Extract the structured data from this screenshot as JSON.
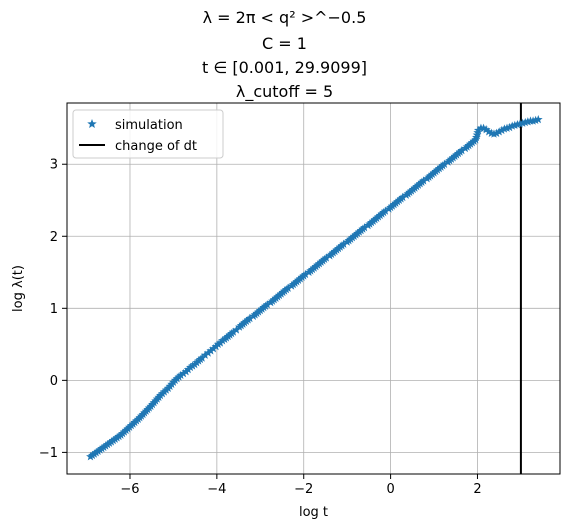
{
  "title_lines": [
    "λ = 2π < q² >^−0.5",
    "C = 1",
    "t ∈ [0.001, 29.9099]",
    "λ_cutoff = 5"
  ],
  "colors": {
    "series": "#1f77b4",
    "vline": "#000000",
    "grid": "#b0b0b0"
  },
  "chart_data": {
    "type": "scatter",
    "xlabel": "log t",
    "ylabel": "log λ(t)",
    "xlim": [
      -7.45,
      3.9
    ],
    "ylim": [
      -1.3,
      3.85
    ],
    "x_ticks": [
      -6,
      -4,
      -2,
      0,
      2
    ],
    "x_tick_labels": [
      "−6",
      "−4",
      "−2",
      "0",
      "2"
    ],
    "y_ticks": [
      -1,
      0,
      1,
      2,
      3
    ],
    "y_tick_labels": [
      "−1",
      "0",
      "1",
      "2",
      "3"
    ],
    "grid": true,
    "legend_position": "upper-left",
    "series": [
      {
        "name": "simulation",
        "marker": "star",
        "x": [
          -6.91,
          -6.21,
          -5.81,
          -5.52,
          -5.3,
          -5.12,
          -4.96,
          -4.83,
          -4.71,
          -4.61,
          -4.51,
          -4.42,
          -4.34,
          -4.27,
          -4.2,
          -4.14,
          -4.08,
          -4.02,
          -3.97,
          -3.92,
          -3.87,
          -3.82,
          -3.78,
          -3.74,
          -3.7,
          -3.66,
          -3.62,
          -3.55,
          -3.48,
          -3.4,
          -3.32,
          -3.24,
          -3.16,
          -3.08,
          -3.0,
          -2.92,
          -2.84,
          -2.76,
          -2.68,
          -2.6,
          -2.52,
          -2.44,
          -2.36,
          -2.28,
          -2.2,
          -2.12,
          -2.04,
          -1.96,
          -1.88,
          -1.8,
          -1.72,
          -1.64,
          -1.56,
          -1.48,
          -1.4,
          -1.32,
          -1.24,
          -1.16,
          -1.08,
          -1.0,
          -0.92,
          -0.84,
          -0.76,
          -0.68,
          -0.6,
          -0.52,
          -0.44,
          -0.36,
          -0.28,
          -0.2,
          -0.12,
          -0.04,
          0.04,
          0.12,
          0.2,
          0.28,
          0.36,
          0.44,
          0.52,
          0.6,
          0.68,
          0.76,
          0.84,
          0.92,
          1.0,
          1.08,
          1.16,
          1.24,
          1.32,
          1.4,
          1.48,
          1.56,
          1.64,
          1.72,
          1.8,
          1.88,
          1.96,
          2.02,
          2.08,
          2.14,
          2.2,
          2.26,
          2.32,
          2.38,
          2.44,
          2.5,
          2.56,
          2.62,
          2.68,
          2.74,
          2.8,
          2.86,
          2.92,
          2.98,
          3.04,
          3.1,
          3.16,
          3.22,
          3.28,
          3.34,
          3.4
        ],
        "y": [
          -1.06,
          -0.76,
          -0.54,
          -0.36,
          -0.21,
          -0.11,
          0.0,
          0.07,
          0.12,
          0.18,
          0.22,
          0.27,
          0.31,
          0.35,
          0.38,
          0.41,
          0.44,
          0.47,
          0.5,
          0.52,
          0.55,
          0.57,
          0.59,
          0.61,
          0.63,
          0.65,
          0.67,
          0.7,
          0.74,
          0.78,
          0.82,
          0.86,
          0.89,
          0.93,
          0.97,
          1.01,
          1.05,
          1.08,
          1.12,
          1.16,
          1.2,
          1.24,
          1.28,
          1.31,
          1.35,
          1.39,
          1.43,
          1.47,
          1.5,
          1.54,
          1.58,
          1.62,
          1.66,
          1.7,
          1.73,
          1.77,
          1.81,
          1.85,
          1.89,
          1.92,
          1.96,
          2.0,
          2.04,
          2.08,
          2.12,
          2.15,
          2.19,
          2.23,
          2.27,
          2.31,
          2.35,
          2.38,
          2.42,
          2.46,
          2.5,
          2.54,
          2.57,
          2.61,
          2.65,
          2.69,
          2.73,
          2.77,
          2.8,
          2.84,
          2.88,
          2.92,
          2.96,
          3.0,
          3.03,
          3.07,
          3.11,
          3.15,
          3.19,
          3.22,
          3.26,
          3.3,
          3.34,
          3.47,
          3.5,
          3.5,
          3.48,
          3.45,
          3.43,
          3.42,
          3.43,
          3.45,
          3.47,
          3.49,
          3.5,
          3.51,
          3.53,
          3.54,
          3.55,
          3.56,
          3.57,
          3.58,
          3.59,
          3.6,
          3.6,
          3.61,
          3.62
        ]
      },
      {
        "name": "change of dt",
        "type": "vline",
        "x": 3.0
      }
    ]
  }
}
